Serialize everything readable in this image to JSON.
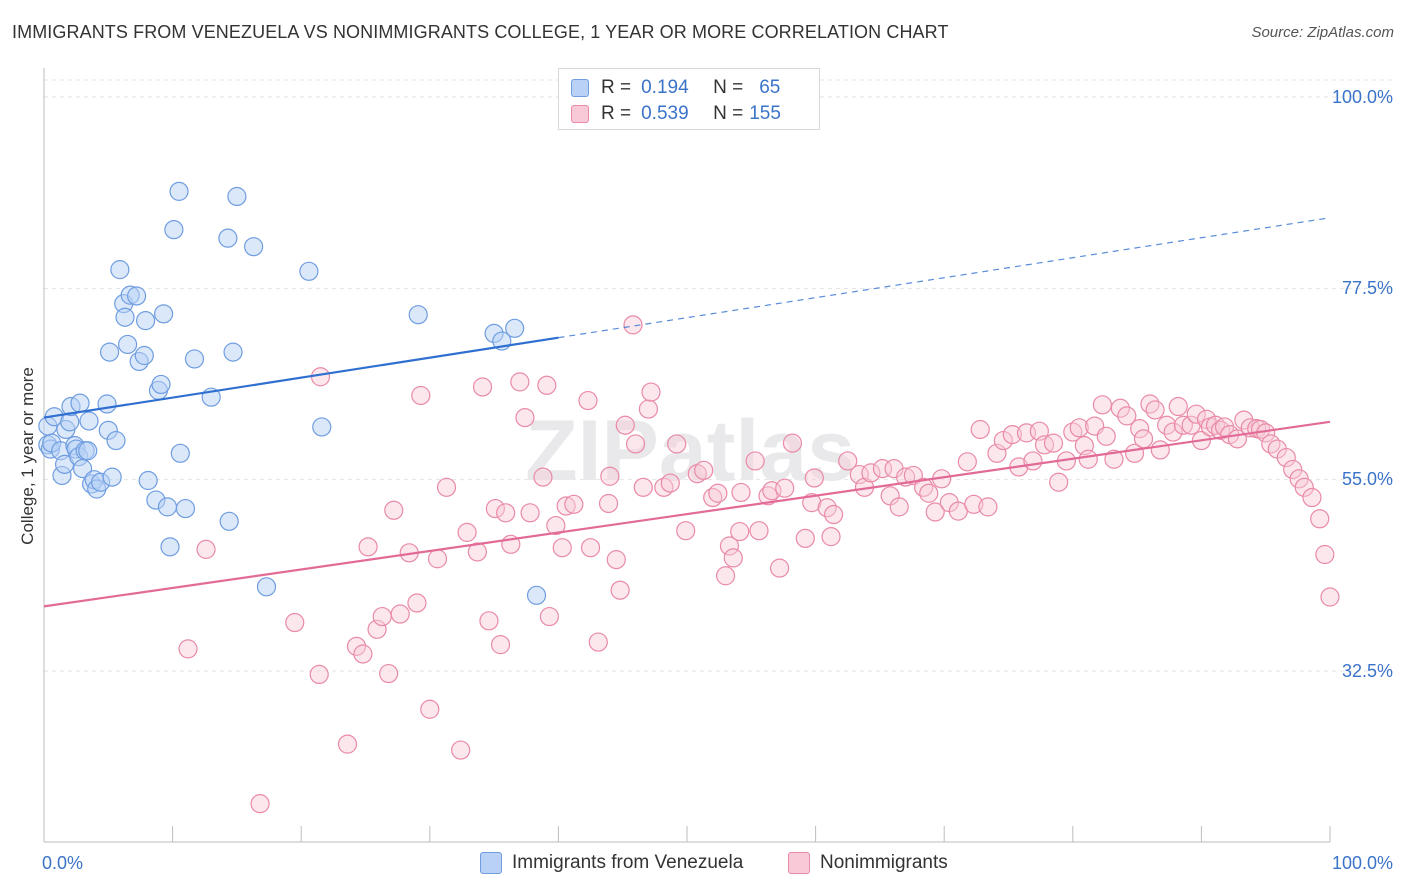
{
  "title": "IMMIGRANTS FROM VENEZUELA VS NONIMMIGRANTS COLLEGE, 1 YEAR OR MORE CORRELATION CHART",
  "source": "Source: ZipAtlas.com",
  "watermark": "ZIPatlas",
  "legend_top": {
    "rows": [
      {
        "r_label": "R =",
        "r_value": "0.194",
        "n_label": "N =",
        "n_value": "65"
      },
      {
        "r_label": "R =",
        "r_value": "0.539",
        "n_label": "N =",
        "n_value": "155"
      }
    ]
  },
  "legend_bottom": [
    "Immigrants from Venezuela",
    "Nonimmigrants"
  ],
  "x_tick_labels": {
    "left": "0.0%",
    "right": "100.0%"
  },
  "y_tick_labels": [
    "100.0%",
    "77.5%",
    "55.0%",
    "32.5%"
  ],
  "colors": {
    "blue_fill": "#b8d1f5",
    "blue_stroke": "#6f9de0",
    "blue_line": "#2f6fd0",
    "pink_fill": "#f8c9d6",
    "pink_stroke": "#e98aa7",
    "pink_line": "#e26a96",
    "axis_text": "#3b73c9"
  },
  "chart_data": {
    "type": "scatter",
    "ylabel": "College, 1 year or more",
    "xlabel": "",
    "xlim": [
      0,
      100
    ],
    "ylim": [
      10,
      102
    ],
    "y_ticks": [
      100,
      77.5,
      55,
      32.5
    ],
    "grid": true,
    "series": [
      {
        "name": "Immigrants from Venezuela",
        "r": 0.194,
        "n": 65,
        "trend": {
          "x0": 0,
          "y0": 62.3,
          "x1": 40,
          "y1": 71.7,
          "dashed_to_x": 100,
          "dashed_y1": 85.8
        },
        "points": [
          [
            0.3,
            59.1
          ],
          [
            0.3,
            61.3
          ],
          [
            0.5,
            58.6
          ],
          [
            0.6,
            59.3
          ],
          [
            0.8,
            62.4
          ],
          [
            1.3,
            58.4
          ],
          [
            1.4,
            55.5
          ],
          [
            1.6,
            56.8
          ],
          [
            1.7,
            60.9
          ],
          [
            2.0,
            61.8
          ],
          [
            2.1,
            63.6
          ],
          [
            2.4,
            59.0
          ],
          [
            2.5,
            58.6
          ],
          [
            2.7,
            57.7
          ],
          [
            2.8,
            64.0
          ],
          [
            3.0,
            56.3
          ],
          [
            3.2,
            58.4
          ],
          [
            3.4,
            58.4
          ],
          [
            3.5,
            61.9
          ],
          [
            3.7,
            54.5
          ],
          [
            3.9,
            55.0
          ],
          [
            4.1,
            53.9
          ],
          [
            4.4,
            54.7
          ],
          [
            4.9,
            63.9
          ],
          [
            5.0,
            60.8
          ],
          [
            5.1,
            70.0
          ],
          [
            5.3,
            55.3
          ],
          [
            5.6,
            59.6
          ],
          [
            5.9,
            79.7
          ],
          [
            6.2,
            75.7
          ],
          [
            6.3,
            74.1
          ],
          [
            6.5,
            70.9
          ],
          [
            6.7,
            76.7
          ],
          [
            7.2,
            76.6
          ],
          [
            7.4,
            68.9
          ],
          [
            7.8,
            69.6
          ],
          [
            7.9,
            73.7
          ],
          [
            8.1,
            54.9
          ],
          [
            8.7,
            52.6
          ],
          [
            8.9,
            65.5
          ],
          [
            9.1,
            66.2
          ],
          [
            9.3,
            74.5
          ],
          [
            9.6,
            51.8
          ],
          [
            9.8,
            47.1
          ],
          [
            10.1,
            84.4
          ],
          [
            10.5,
            88.9
          ],
          [
            10.6,
            58.1
          ],
          [
            11.0,
            51.6
          ],
          [
            11.7,
            69.2
          ],
          [
            13.0,
            64.7
          ],
          [
            14.3,
            83.4
          ],
          [
            14.4,
            50.1
          ],
          [
            14.7,
            70.0
          ],
          [
            15.0,
            88.3
          ],
          [
            16.3,
            82.4
          ],
          [
            17.3,
            42.4
          ],
          [
            20.6,
            79.5
          ],
          [
            21.6,
            61.2
          ],
          [
            29.1,
            74.4
          ],
          [
            35.0,
            72.2
          ],
          [
            35.6,
            71.3
          ],
          [
            36.6,
            72.8
          ],
          [
            38.3,
            41.4
          ]
        ]
      },
      {
        "name": "Nonimmigrants",
        "r": 0.539,
        "n": 155,
        "trend": {
          "x0": 0,
          "y0": 40.1,
          "x1": 100,
          "y1": 61.8
        },
        "points": [
          [
            11.2,
            35.1
          ],
          [
            12.6,
            46.8
          ],
          [
            16.8,
            16.9
          ],
          [
            19.5,
            38.2
          ],
          [
            21.4,
            32.1
          ],
          [
            21.5,
            67.1
          ],
          [
            23.6,
            23.9
          ],
          [
            24.3,
            35.4
          ],
          [
            24.8,
            34.5
          ],
          [
            25.2,
            47.1
          ],
          [
            25.9,
            37.4
          ],
          [
            26.3,
            38.9
          ],
          [
            26.8,
            32.2
          ],
          [
            27.2,
            51.4
          ],
          [
            27.7,
            39.2
          ],
          [
            28.4,
            46.4
          ],
          [
            29.0,
            40.5
          ],
          [
            29.3,
            64.9
          ],
          [
            30.0,
            28.0
          ],
          [
            30.6,
            45.7
          ],
          [
            31.3,
            54.1
          ],
          [
            32.4,
            23.2
          ],
          [
            32.9,
            48.8
          ],
          [
            33.7,
            46.5
          ],
          [
            34.1,
            65.9
          ],
          [
            34.6,
            38.4
          ],
          [
            35.1,
            51.6
          ],
          [
            35.5,
            35.6
          ],
          [
            35.9,
            51.1
          ],
          [
            36.3,
            47.4
          ],
          [
            37.0,
            66.5
          ],
          [
            37.4,
            62.3
          ],
          [
            37.8,
            51.1
          ],
          [
            38.8,
            55.3
          ],
          [
            39.1,
            66.1
          ],
          [
            39.3,
            38.9
          ],
          [
            39.8,
            49.6
          ],
          [
            40.3,
            47.0
          ],
          [
            40.6,
            51.9
          ],
          [
            41.2,
            52.1
          ],
          [
            42.3,
            64.3
          ],
          [
            42.5,
            47.0
          ],
          [
            43.1,
            35.9
          ],
          [
            43.9,
            52.2
          ],
          [
            44.0,
            55.4
          ],
          [
            44.5,
            45.6
          ],
          [
            44.8,
            42.0
          ],
          [
            45.2,
            61.4
          ],
          [
            45.8,
            73.2
          ],
          [
            46.0,
            59.2
          ],
          [
            46.6,
            54.1
          ],
          [
            47.0,
            63.3
          ],
          [
            47.2,
            65.3
          ],
          [
            48.2,
            54.1
          ],
          [
            48.7,
            54.6
          ],
          [
            49.2,
            59.2
          ],
          [
            49.9,
            49.0
          ],
          [
            50.8,
            55.7
          ],
          [
            51.3,
            56.1
          ],
          [
            52.0,
            52.9
          ],
          [
            52.4,
            53.4
          ],
          [
            53.0,
            43.7
          ],
          [
            53.3,
            47.2
          ],
          [
            53.6,
            45.8
          ],
          [
            54.1,
            48.9
          ],
          [
            54.2,
            53.5
          ],
          [
            55.3,
            57.2
          ],
          [
            55.6,
            49.0
          ],
          [
            56.3,
            53.1
          ],
          [
            56.6,
            53.7
          ],
          [
            57.2,
            44.6
          ],
          [
            57.6,
            54.0
          ],
          [
            58.2,
            59.3
          ],
          [
            59.2,
            48.1
          ],
          [
            59.7,
            52.3
          ],
          [
            59.9,
            55.2
          ],
          [
            60.9,
            51.7
          ],
          [
            61.2,
            48.3
          ],
          [
            61.4,
            50.9
          ],
          [
            62.5,
            57.2
          ],
          [
            63.4,
            55.6
          ],
          [
            63.8,
            54.1
          ],
          [
            64.3,
            55.8
          ],
          [
            65.2,
            56.3
          ],
          [
            65.8,
            53.1
          ],
          [
            66.1,
            56.3
          ],
          [
            66.5,
            51.8
          ],
          [
            67.0,
            55.3
          ],
          [
            67.6,
            55.5
          ],
          [
            68.4,
            54.1
          ],
          [
            68.8,
            53.4
          ],
          [
            69.3,
            51.2
          ],
          [
            69.8,
            55.1
          ],
          [
            70.4,
            52.3
          ],
          [
            71.1,
            51.3
          ],
          [
            71.8,
            57.1
          ],
          [
            72.3,
            52.1
          ],
          [
            72.8,
            60.9
          ],
          [
            73.4,
            51.8
          ],
          [
            74.1,
            58.1
          ],
          [
            74.6,
            59.6
          ],
          [
            75.3,
            60.3
          ],
          [
            75.8,
            56.5
          ],
          [
            76.4,
            60.5
          ],
          [
            76.9,
            57.2
          ],
          [
            77.4,
            60.7
          ],
          [
            77.8,
            59.1
          ],
          [
            78.5,
            59.3
          ],
          [
            78.9,
            54.7
          ],
          [
            79.5,
            57.2
          ],
          [
            80.0,
            60.6
          ],
          [
            80.5,
            61.1
          ],
          [
            80.9,
            59.0
          ],
          [
            81.2,
            57.4
          ],
          [
            81.7,
            61.3
          ],
          [
            82.3,
            63.8
          ],
          [
            82.6,
            60.1
          ],
          [
            83.2,
            57.4
          ],
          [
            83.7,
            63.4
          ],
          [
            84.2,
            62.5
          ],
          [
            84.8,
            58.1
          ],
          [
            85.2,
            61.0
          ],
          [
            85.5,
            59.8
          ],
          [
            86.0,
            63.9
          ],
          [
            86.4,
            63.2
          ],
          [
            86.8,
            58.5
          ],
          [
            87.3,
            61.4
          ],
          [
            87.8,
            60.6
          ],
          [
            88.2,
            63.6
          ],
          [
            88.6,
            61.4
          ],
          [
            89.2,
            61.4
          ],
          [
            89.6,
            62.7
          ],
          [
            90.0,
            59.6
          ],
          [
            90.4,
            62.1
          ],
          [
            90.7,
            61.2
          ],
          [
            91.1,
            61.4
          ],
          [
            91.5,
            60.8
          ],
          [
            91.8,
            61.2
          ],
          [
            92.2,
            60.3
          ],
          [
            92.8,
            59.8
          ],
          [
            93.3,
            62.0
          ],
          [
            93.8,
            61.1
          ],
          [
            94.3,
            61.0
          ],
          [
            94.6,
            60.9
          ],
          [
            95.0,
            60.5
          ],
          [
            95.4,
            59.2
          ],
          [
            95.9,
            58.6
          ],
          [
            96.6,
            57.6
          ],
          [
            97.1,
            56.2
          ],
          [
            97.6,
            55.1
          ],
          [
            98.0,
            54.1
          ],
          [
            98.6,
            52.9
          ],
          [
            99.2,
            50.4
          ],
          [
            99.6,
            46.2
          ],
          [
            100.0,
            41.2
          ]
        ]
      }
    ]
  }
}
